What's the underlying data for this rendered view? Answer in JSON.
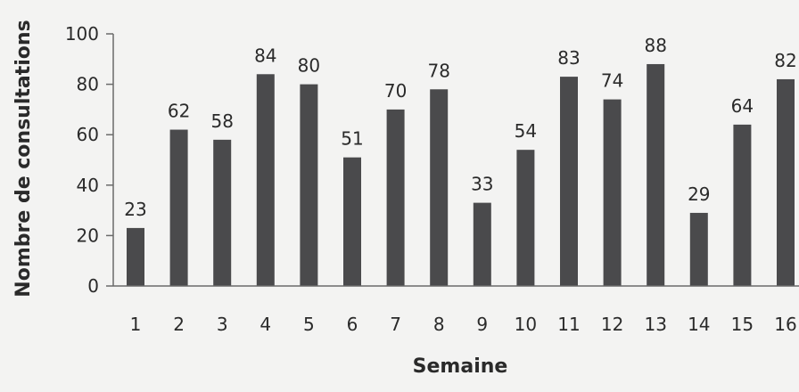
{
  "chart_data": {
    "type": "bar",
    "categories": [
      "1",
      "2",
      "3",
      "4",
      "5",
      "6",
      "7",
      "8",
      "9",
      "10",
      "11",
      "12",
      "13",
      "14",
      "15",
      "16"
    ],
    "values": [
      23,
      62,
      58,
      84,
      80,
      51,
      70,
      78,
      33,
      54,
      83,
      74,
      88,
      29,
      64,
      82
    ],
    "title": "",
    "xlabel": "Semaine",
    "ylabel": "Nombre de consultations",
    "ylim": [
      0,
      100
    ],
    "yticks": [
      0,
      20,
      40,
      60,
      80,
      100
    ],
    "grid": false,
    "legend": "none",
    "bar_color": "#4a4a4c",
    "axis_color": "#6a6a6a",
    "text_color": "#2a2a2a"
  }
}
